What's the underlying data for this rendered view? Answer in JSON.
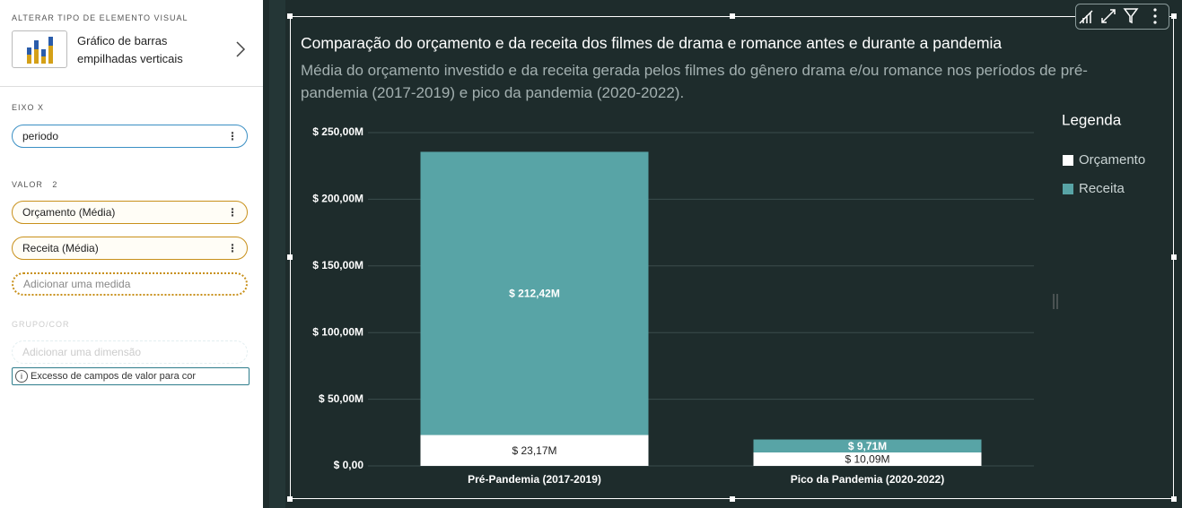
{
  "panel": {
    "section_title": "ALTERAR TIPO DE ELEMENTO VISUAL",
    "visual_type": "Gráfico de barras empilhadas verticais",
    "x_axis_label": "EIXO X",
    "x_field": "periodo",
    "value_label": "VALOR",
    "value_count": "2",
    "value_fields": [
      "Orçamento (Média)",
      "Receita (Média)"
    ],
    "add_measure": "Adicionar uma medida",
    "group_label": "GRUPO/COR",
    "add_dimension": "Adicionar uma dimensão",
    "warning": "Excesso de campos de valor para cor"
  },
  "chart_data": {
    "type": "stacked_bar",
    "title": "Comparação do orçamento e da receita dos filmes de drama e romance antes e durante a pandemia",
    "subtitle": "Média do orçamento investido e da receita gerada pelos filmes do gênero drama e/ou romance nos períodos de pré-pandemia (2017-2019) e pico da pandemia (2020-2022).",
    "categories": [
      "Pré-Pandemia (2017-2019)",
      "Pico da Pandemia (2020-2022)"
    ],
    "series": [
      {
        "name": "Orçamento",
        "color": "#ffffff",
        "values": [
          23.17,
          10.09
        ],
        "value_labels": [
          "$ 23,17M",
          "$ 10,09M"
        ]
      },
      {
        "name": "Receita",
        "color": "#58a4a6",
        "values": [
          212.42,
          9.71
        ],
        "value_labels": [
          "$ 212,42M",
          "$ 9,71M"
        ]
      }
    ],
    "ylim": [
      0,
      250
    ],
    "yticks": [
      {
        "value": 0,
        "label": "$ 0,00"
      },
      {
        "value": 50,
        "label": "$ 50,00M"
      },
      {
        "value": 100,
        "label": "$ 100,00M"
      },
      {
        "value": 150,
        "label": "$ 150,00M"
      },
      {
        "value": 200,
        "label": "$ 200,00M"
      },
      {
        "value": 250,
        "label": "$ 250,00M"
      }
    ],
    "grid": true,
    "legend_title": "Legenda",
    "legend_position": "right"
  }
}
